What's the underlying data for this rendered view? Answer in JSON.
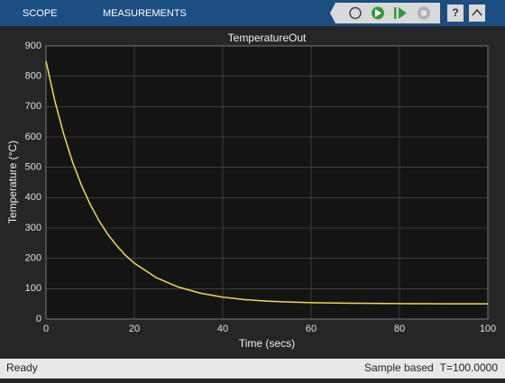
{
  "toolbar": {
    "tabs": [
      "SCOPE",
      "MEASUREMENTS"
    ]
  },
  "chart_data": {
    "type": "line",
    "title": "TemperatureOut",
    "x_label": "Time (secs)",
    "y_label": "Temperature (°C)",
    "x": [
      0,
      2,
      4,
      6,
      8,
      10,
      12,
      14,
      16,
      18,
      20,
      25,
      30,
      35,
      40,
      45,
      50,
      55,
      60,
      70,
      80,
      90,
      100
    ],
    "values": [
      850,
      719,
      610,
      518,
      442,
      378,
      324,
      279,
      242,
      210,
      184,
      136,
      105,
      85,
      72,
      64,
      59,
      56,
      54,
      52,
      51,
      50,
      50
    ],
    "color": "#f2d94e",
    "xlim": [
      0,
      100
    ],
    "ylim": [
      0,
      900
    ],
    "xticks": [
      0,
      20,
      40,
      60,
      80,
      100
    ],
    "yticks": [
      0,
      100,
      200,
      300,
      400,
      500,
      600,
      700,
      800,
      900
    ],
    "grid": true
  },
  "status_bar": {
    "state": "Ready",
    "mode": "Sample based",
    "time": "T=100.0000"
  }
}
